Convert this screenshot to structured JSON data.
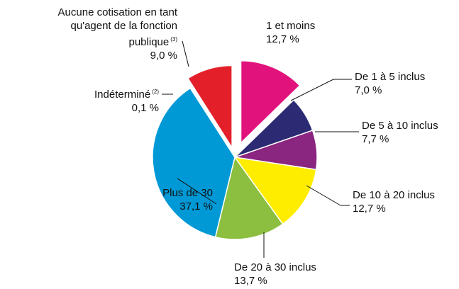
{
  "chart_data": {
    "type": "pie",
    "categories": [
      "1 et moins",
      "De 1 à 5 inclus",
      "De 5 à 10 inclus",
      "De 10 à 20 inclus",
      "De 20 à 30 inclus",
      "Plus de 30",
      "Indéterminé",
      "Aucune cotisation en tant qu'agent de la fonction publique"
    ],
    "footnotes": {
      "6": "(2)",
      "7": "(3)"
    },
    "values": [
      12.7,
      7.0,
      7.7,
      12.7,
      13.7,
      37.1,
      0.1,
      9.0
    ],
    "value_labels": [
      "12,7 %",
      "7,0 %",
      "7,7 %",
      "12,7 %",
      "13,7 %",
      "37,1 %",
      "0,1 %",
      "9,0 %"
    ],
    "colors": [
      "#e2127d",
      "#2b2a73",
      "#8a2580",
      "#ffed00",
      "#8cbf3f",
      "#0099d6",
      "#7a7a7a",
      "#e3202a"
    ],
    "exploded": [
      0,
      7
    ]
  }
}
